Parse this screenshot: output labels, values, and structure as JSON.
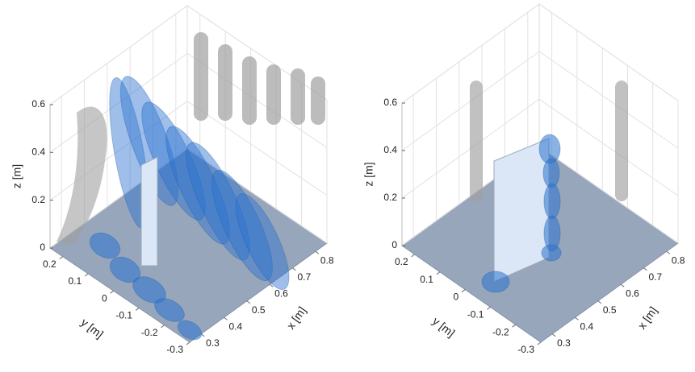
{
  "chart_data": [
    {
      "type": "isosurface3d",
      "xlabel": "x [m]",
      "ylabel": "y [m]",
      "zlabel": "z [m]",
      "xlim": [
        0.25,
        0.85
      ],
      "xticks": [
        0.3,
        0.4,
        0.5,
        0.6,
        0.7,
        0.8
      ],
      "ylim": [
        0.25,
        -0.3
      ],
      "yticks": [
        0.2,
        0.1,
        0,
        -0.1,
        -0.2,
        -0.3
      ],
      "zlim": [
        0,
        0.6
      ],
      "zticks": [
        0,
        0.2,
        0.4,
        0.6
      ],
      "grid": true
    },
    {
      "type": "isosurface3d",
      "xlabel": "x [m]",
      "ylabel": "y [m]",
      "zlabel": "z [m]",
      "xlim": [
        0.25,
        0.85
      ],
      "xticks": [
        0.3,
        0.4,
        0.5,
        0.6,
        0.7,
        0.8
      ],
      "ylim": [
        0.25,
        -0.3
      ],
      "yticks": [
        0.2,
        0.1,
        0,
        -0.1,
        -0.2,
        -0.3
      ],
      "zlim": [
        0,
        0.6
      ],
      "zticks": [
        0,
        0.2,
        0.4,
        0.6
      ],
      "grid": true
    }
  ]
}
